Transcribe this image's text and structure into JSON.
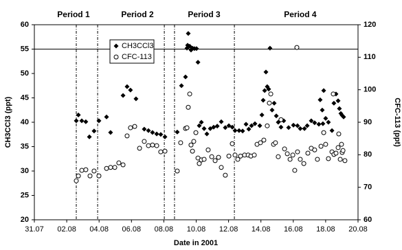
{
  "chart_data": {
    "type": "scatter",
    "x_label": "Date in 2001",
    "y_label": "CH3CCl3 (ppt)",
    "y2_label": "CFC-113 (ppt)",
    "xlim": [
      212,
      232
    ],
    "xticks": [
      {
        "value": 212,
        "label": "31.07"
      },
      {
        "value": 214,
        "label": "02.08"
      },
      {
        "value": 216,
        "label": "04.08"
      },
      {
        "value": 218,
        "label": "06.08"
      },
      {
        "value": 220,
        "label": "08.08"
      },
      {
        "value": 222,
        "label": "10.08"
      },
      {
        "value": 224,
        "label": "12.08"
      },
      {
        "value": 226,
        "label": "14.08"
      },
      {
        "value": 228,
        "label": "16.08"
      },
      {
        "value": 230,
        "label": "18.08"
      },
      {
        "value": 232,
        "label": "20.08"
      }
    ],
    "ylim": [
      20,
      60
    ],
    "yticks": [
      20,
      25,
      30,
      35,
      40,
      45,
      50,
      55,
      60
    ],
    "y2lim": [
      60,
      120
    ],
    "y2ticks": [
      60,
      70,
      80,
      90,
      100,
      110,
      120
    ],
    "hline": 55,
    "vlines": [
      214.59,
      215.91,
      220.03,
      220.66,
      224.36
    ],
    "annotations": [
      {
        "text": "Period 1",
        "x": 214.42
      },
      {
        "text": "Period 2",
        "x": 218.37
      },
      {
        "text": "Period 3",
        "x": 222.49
      },
      {
        "text": "Period 4",
        "x": 228.43
      }
    ],
    "legend": "upper left",
    "series": [
      {
        "name": "CH3CCl3",
        "color": "#000000",
        "marker": "diamond",
        "x": [
          214.59,
          214.72,
          214.93,
          215.18,
          215.4,
          215.69,
          215.99,
          216.46,
          216.71,
          217.48,
          217.73,
          217.94,
          218.28,
          218.79,
          219.05,
          219.3,
          219.56,
          219.81,
          220.07,
          220.83,
          221.09,
          221.34,
          221.43,
          221.47,
          221.51,
          221.6,
          221.68,
          221.77,
          221.89,
          222.02,
          222.11,
          222.19,
          222.32,
          222.49,
          222.66,
          222.87,
          223.08,
          223.3,
          223.55,
          223.8,
          224.02,
          224.23,
          224.4,
          224.65,
          224.87,
          225.08,
          225.25,
          225.42,
          225.63,
          225.93,
          226.06,
          226.14,
          226.23,
          226.31,
          226.39,
          226.48,
          226.56,
          226.69,
          226.82,
          226.95,
          227.07,
          227.24,
          227.41,
          227.71,
          228.01,
          228.26,
          228.43,
          228.69,
          228.86,
          229.11,
          229.32,
          229.58,
          229.66,
          229.79,
          229.83,
          229.88,
          230.0,
          230.17,
          230.39,
          230.51,
          230.64,
          230.77,
          230.85,
          230.94,
          231.02,
          231.11
        ],
        "values": [
          40.3,
          41.5,
          40.3,
          40.1,
          37.0,
          38.2,
          40.3,
          41.1,
          37.9,
          45.5,
          47.3,
          46.6,
          44.8,
          38.6,
          38.3,
          37.9,
          37.6,
          37.5,
          37.0,
          38.0,
          47.5,
          49.3,
          55.2,
          55.8,
          58.2,
          55.6,
          54.8,
          55.2,
          55.1,
          55.1,
          52.3,
          39.3,
          40.0,
          38.7,
          37.6,
          38.7,
          39.0,
          39.2,
          40.1,
          38.9,
          39.3,
          39.0,
          38.3,
          38.3,
          38.2,
          39.6,
          38.6,
          39.3,
          39.7,
          39.3,
          41.5,
          44.5,
          46.5,
          50.3,
          47.3,
          46.8,
          55.2,
          42.5,
          43.9,
          41.3,
          40.0,
          39.0,
          40.3,
          38.9,
          39.4,
          39.3,
          38.7,
          38.7,
          39.3,
          40.3,
          39.9,
          39.6,
          44.6,
          42.5,
          39.7,
          46.5,
          40.8,
          40.0,
          38.3,
          43.9,
          45.8,
          44.4,
          42.8,
          41.8,
          41.4,
          41.1
        ]
      },
      {
        "name": "CFC-113",
        "color": "#000000",
        "marker": "circle",
        "axis": "y2",
        "x": [
          214.59,
          214.72,
          214.93,
          215.18,
          215.44,
          215.69,
          215.99,
          216.46,
          216.71,
          216.97,
          217.22,
          217.48,
          217.73,
          217.94,
          218.2,
          218.5,
          218.79,
          219.05,
          219.3,
          219.56,
          219.81,
          220.07,
          220.83,
          221.04,
          221.34,
          221.43,
          221.51,
          221.6,
          221.68,
          221.77,
          221.85,
          221.98,
          222.11,
          222.19,
          222.32,
          222.49,
          222.74,
          222.96,
          223.17,
          223.38,
          223.55,
          223.8,
          224.02,
          224.23,
          224.4,
          224.57,
          224.74,
          224.99,
          225.21,
          225.38,
          225.59,
          225.76,
          225.97,
          226.18,
          226.39,
          226.52,
          226.61,
          226.78,
          226.9,
          227.07,
          227.24,
          227.46,
          227.63,
          227.8,
          227.97,
          228.09,
          228.22,
          228.26,
          228.43,
          228.65,
          228.9,
          229.11,
          229.32,
          229.49,
          229.71,
          229.88,
          230.0,
          230.17,
          230.39,
          230.47,
          230.51,
          230.64,
          230.77,
          230.81,
          230.9,
          230.98,
          231.02,
          231.07,
          231.19
        ],
        "values": [
          72.0,
          73.5,
          75.2,
          75.4,
          73.5,
          75.0,
          73.5,
          75.8,
          76.1,
          76.1,
          77.5,
          76.9,
          85.8,
          88.3,
          88.7,
          82.0,
          84.1,
          82.8,
          83.0,
          82.8,
          80.9,
          81.1,
          75.0,
          83.7,
          88.1,
          88.3,
          94.6,
          98.7,
          83.0,
          81.1,
          84.1,
          86.8,
          79.0,
          77.3,
          78.4,
          78.6,
          81.5,
          79.4,
          78.2,
          79.2,
          76.1,
          73.7,
          79.6,
          83.4,
          79.9,
          78.6,
          79.6,
          79.9,
          79.9,
          79.6,
          79.9,
          83.2,
          83.7,
          84.5,
          88.9,
          95.9,
          98.7,
          83.2,
          83.7,
          79.4,
          90.8,
          81.8,
          80.3,
          78.6,
          79.9,
          75.2,
          113.0,
          80.9,
          78.6,
          77.3,
          80.5,
          82.0,
          81.5,
          78.6,
          82.6,
          86.8,
          83.2,
          78.8,
          80.9,
          98.7,
          80.1,
          80.5,
          82.2,
          86.4,
          78.6,
          83.2,
          80.7,
          81.3,
          78.2
        ]
      }
    ]
  }
}
